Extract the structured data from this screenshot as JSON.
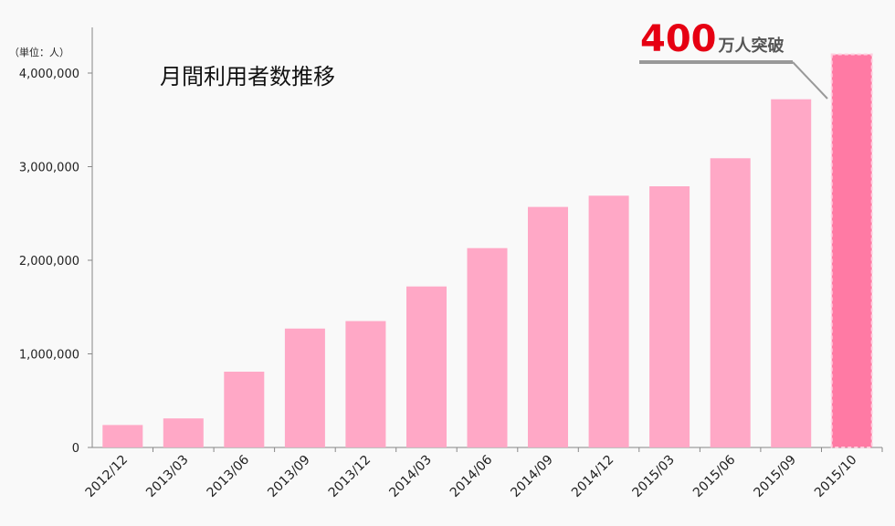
{
  "chart_data": {
    "type": "bar",
    "title": "月間利用者数推移",
    "unit_label": "（単位：人）",
    "categories": [
      "2012/12",
      "2013/03",
      "2013/06",
      "2013/09",
      "2013/12",
      "2014/03",
      "2014/06",
      "2014/09",
      "2014/12",
      "2015/03",
      "2015/06",
      "2015/09",
      "2015/10"
    ],
    "values": [
      240000,
      310000,
      810000,
      1270000,
      1350000,
      1720000,
      2130000,
      2570000,
      2690000,
      2790000,
      3090000,
      3720000,
      4200000
    ],
    "ylim": [
      0,
      4000000
    ],
    "yticks": [
      "0",
      "1,000,000",
      "2,000,000",
      "3,000,000",
      "4,000,000"
    ],
    "ytick_values": [
      0,
      1000000,
      2000000,
      3000000,
      4000000
    ],
    "grid": false,
    "colors": {
      "bar": "#ffa8c6",
      "highlight_bar": "#ff7aa4",
      "highlight_border": "#ffd0e0",
      "callout_number": "#e60012",
      "callout_text": "#555555",
      "leader_line": "#999999",
      "axis": "#888888"
    },
    "highlight_index": 12,
    "callout": {
      "number": "400",
      "text": "万人突破"
    }
  }
}
